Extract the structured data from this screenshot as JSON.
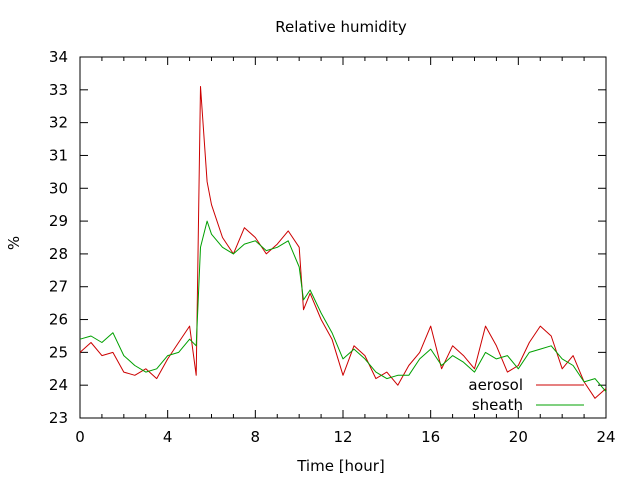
{
  "chart_data": {
    "type": "line",
    "title": "Relative humidity",
    "xlabel": "Time [hour]",
    "ylabel": "%",
    "xlim": [
      0,
      24
    ],
    "ylim": [
      23,
      34
    ],
    "xticks": [
      0,
      4,
      8,
      12,
      16,
      20,
      24
    ],
    "yticks": [
      23,
      24,
      25,
      26,
      27,
      28,
      29,
      30,
      31,
      32,
      33,
      34
    ],
    "grid": false,
    "legend_position": "bottom-right",
    "series": [
      {
        "name": "aerosol",
        "color": "#cc0000",
        "x": [
          0.0,
          0.5,
          1.0,
          1.5,
          2.0,
          2.5,
          3.0,
          3.5,
          4.0,
          4.5,
          5.0,
          5.3,
          5.5,
          5.8,
          6.0,
          6.5,
          7.0,
          7.5,
          8.0,
          8.5,
          9.0,
          9.5,
          10.0,
          10.2,
          10.5,
          11.0,
          11.5,
          12.0,
          12.5,
          13.0,
          13.5,
          14.0,
          14.5,
          15.0,
          15.5,
          16.0,
          16.5,
          17.0,
          17.5,
          18.0,
          18.5,
          19.0,
          19.5,
          20.0,
          20.5,
          21.0,
          21.5,
          22.0,
          22.5,
          23.0,
          23.5,
          24.0
        ],
        "y": [
          25.0,
          25.3,
          24.9,
          25.0,
          24.4,
          24.3,
          24.5,
          24.2,
          24.8,
          25.3,
          25.8,
          24.3,
          33.1,
          30.2,
          29.5,
          28.5,
          28.0,
          28.8,
          28.5,
          28.0,
          28.3,
          28.7,
          28.2,
          26.3,
          26.8,
          26.0,
          25.4,
          24.3,
          25.2,
          24.9,
          24.2,
          24.4,
          24.0,
          24.6,
          25.0,
          25.8,
          24.5,
          25.2,
          24.9,
          24.5,
          25.8,
          25.2,
          24.4,
          24.6,
          25.3,
          25.8,
          25.5,
          24.5,
          24.9,
          24.1,
          23.6,
          23.9
        ]
      },
      {
        "name": "sheath",
        "color": "#00a000",
        "x": [
          0.0,
          0.5,
          1.0,
          1.5,
          2.0,
          2.5,
          3.0,
          3.5,
          4.0,
          4.5,
          5.0,
          5.3,
          5.5,
          5.8,
          6.0,
          6.5,
          7.0,
          7.5,
          8.0,
          8.5,
          9.0,
          9.5,
          10.0,
          10.2,
          10.5,
          11.0,
          11.5,
          12.0,
          12.5,
          13.0,
          13.5,
          14.0,
          14.5,
          15.0,
          15.5,
          16.0,
          16.5,
          17.0,
          17.5,
          18.0,
          18.5,
          19.0,
          19.5,
          20.0,
          20.5,
          21.0,
          21.5,
          22.0,
          22.5,
          23.0,
          23.5,
          24.0
        ],
        "y": [
          25.4,
          25.5,
          25.3,
          25.6,
          24.9,
          24.6,
          24.4,
          24.5,
          24.9,
          25.0,
          25.4,
          25.2,
          28.2,
          29.0,
          28.6,
          28.2,
          28.0,
          28.3,
          28.4,
          28.1,
          28.2,
          28.4,
          27.6,
          26.6,
          26.9,
          26.2,
          25.6,
          24.8,
          25.1,
          24.8,
          24.4,
          24.2,
          24.3,
          24.3,
          24.8,
          25.1,
          24.6,
          24.9,
          24.7,
          24.4,
          25.0,
          24.8,
          24.9,
          24.5,
          25.0,
          25.1,
          25.2,
          24.8,
          24.6,
          24.1,
          24.2,
          23.8
        ]
      }
    ]
  }
}
